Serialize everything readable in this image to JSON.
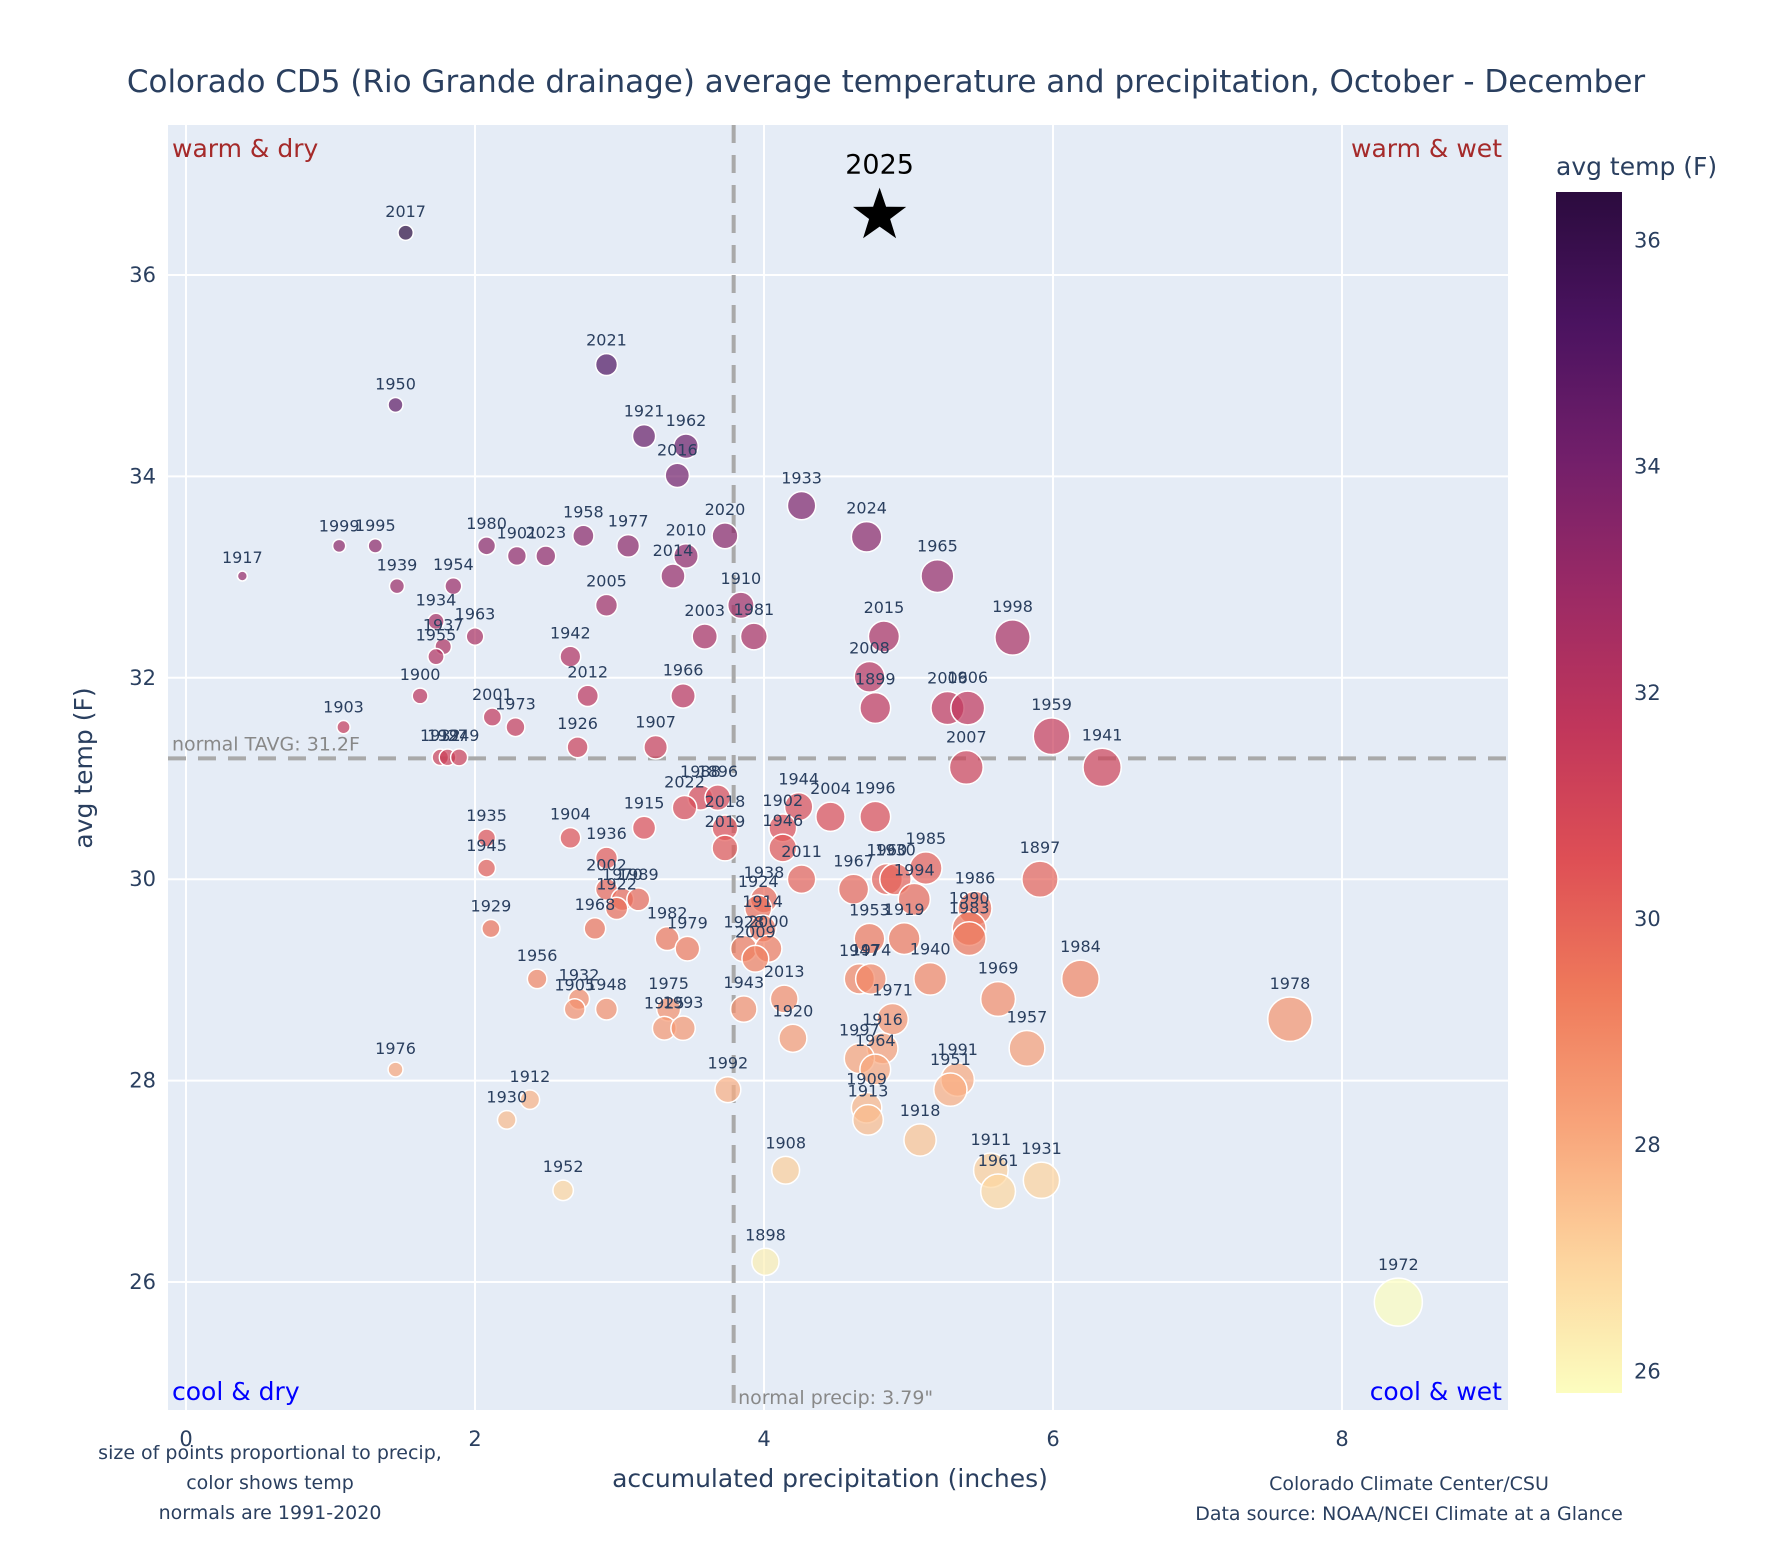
{
  "chart_data": {
    "type": "scatter",
    "title": "Colorado CD5 (Rio Grande drainage) average temperature and precipitation, October - December",
    "xlabel": "accumulated precipitation (inches)",
    "ylabel": "avg temp (F)",
    "xlim": [
      -0.1,
      9.2
    ],
    "ylim": [
      24.85,
      37.35
    ],
    "xticks": [
      0,
      2,
      4,
      6,
      8
    ],
    "yticks": [
      26,
      28,
      30,
      32,
      34,
      36
    ],
    "grid": true,
    "marker_size_encodes": "precip",
    "marker_color_encodes": "avg temp",
    "colorbar": {
      "title": "avg temp (F)",
      "range": [
        25.8,
        36.42
      ],
      "ticks": [
        26,
        28,
        30,
        32,
        34,
        36
      ],
      "colorscale": [
        "#fcfdbf",
        "#fdd49e",
        "#f8a47a",
        "#ef7a5b",
        "#de4f55",
        "#c0365b",
        "#9b2a65",
        "#721f6a",
        "#4b1360",
        "#2b0b3e"
      ]
    },
    "normals": {
      "precip": 3.79,
      "precip_label": "normal precip: 3.79\"",
      "tavg": 31.2,
      "tavg_label": "normal TAVG: 31.2F"
    },
    "quadrants": {
      "top_left": "warm & dry",
      "top_right": "warm & wet",
      "bottom_left": "cool & dry",
      "bottom_right": "cool & wet"
    },
    "highlight": {
      "label": "2025",
      "x": 4.8,
      "y": 36.63
    },
    "points": [
      {
        "year": "2017",
        "x": 1.52,
        "y": 36.42
      },
      {
        "year": "2021",
        "x": 2.91,
        "y": 35.11
      },
      {
        "year": "1950",
        "x": 1.45,
        "y": 34.71
      },
      {
        "year": "1921",
        "x": 3.17,
        "y": 34.4
      },
      {
        "year": "1962",
        "x": 3.46,
        "y": 34.3
      },
      {
        "year": "2016",
        "x": 3.4,
        "y": 34.01
      },
      {
        "year": "1933",
        "x": 4.26,
        "y": 33.71
      },
      {
        "year": "2024",
        "x": 4.71,
        "y": 33.4
      },
      {
        "year": "1965",
        "x": 5.2,
        "y": 33.01
      },
      {
        "year": "1998",
        "x": 5.72,
        "y": 32.4
      },
      {
        "year": "2020",
        "x": 3.73,
        "y": 33.41
      },
      {
        "year": "1999",
        "x": 1.06,
        "y": 33.31
      },
      {
        "year": "1995",
        "x": 1.31,
        "y": 33.31
      },
      {
        "year": "1980",
        "x": 2.08,
        "y": 33.31
      },
      {
        "year": "1901",
        "x": 2.29,
        "y": 33.21
      },
      {
        "year": "2023",
        "x": 2.49,
        "y": 33.21
      },
      {
        "year": "1958",
        "x": 2.75,
        "y": 33.41
      },
      {
        "year": "1977",
        "x": 3.06,
        "y": 33.31
      },
      {
        "year": "2010",
        "x": 3.46,
        "y": 33.21
      },
      {
        "year": "2014",
        "x": 3.37,
        "y": 33.01
      },
      {
        "year": "1910",
        "x": 3.84,
        "y": 32.72
      },
      {
        "year": "1981",
        "x": 3.93,
        "y": 32.41
      },
      {
        "year": "2003",
        "x": 3.59,
        "y": 32.41
      },
      {
        "year": "2005",
        "x": 2.91,
        "y": 32.72
      },
      {
        "year": "1917",
        "x": 0.39,
        "y": 33.01
      },
      {
        "year": "1939",
        "x": 1.46,
        "y": 32.91
      },
      {
        "year": "1954",
        "x": 1.85,
        "y": 32.91
      },
      {
        "year": "1934",
        "x": 1.73,
        "y": 32.56
      },
      {
        "year": "1937",
        "x": 1.78,
        "y": 32.31
      },
      {
        "year": "1955",
        "x": 1.73,
        "y": 32.21
      },
      {
        "year": "1963",
        "x": 2.0,
        "y": 32.41
      },
      {
        "year": "1942",
        "x": 2.66,
        "y": 32.21
      },
      {
        "year": "2012",
        "x": 2.78,
        "y": 31.82
      },
      {
        "year": "1966",
        "x": 3.44,
        "y": 31.82
      },
      {
        "year": "2015",
        "x": 4.83,
        "y": 32.41
      },
      {
        "year": "2008",
        "x": 4.73,
        "y": 32.01
      },
      {
        "year": "1899",
        "x": 4.77,
        "y": 31.7
      },
      {
        "year": "2006",
        "x": 5.27,
        "y": 31.7
      },
      {
        "year": "1906",
        "x": 5.41,
        "y": 31.7
      },
      {
        "year": "1959",
        "x": 5.99,
        "y": 31.42
      },
      {
        "year": "2007",
        "x": 5.4,
        "y": 31.11
      },
      {
        "year": "1941",
        "x": 6.34,
        "y": 31.11
      },
      {
        "year": "1900",
        "x": 1.62,
        "y": 31.82
      },
      {
        "year": "1903",
        "x": 1.09,
        "y": 31.51
      },
      {
        "year": "2001",
        "x": 2.12,
        "y": 31.61
      },
      {
        "year": "1973",
        "x": 2.28,
        "y": 31.51
      },
      {
        "year": "1926",
        "x": 2.71,
        "y": 31.31
      },
      {
        "year": "1907",
        "x": 3.25,
        "y": 31.31
      },
      {
        "year": "1932",
        "x": 1.76,
        "y": 31.21
      },
      {
        "year": "1927",
        "x": 1.81,
        "y": 31.21
      },
      {
        "year": "1949",
        "x": 1.89,
        "y": 31.21
      },
      {
        "year": "1988",
        "x": 3.56,
        "y": 30.81
      },
      {
        "year": "2022",
        "x": 3.45,
        "y": 30.71
      },
      {
        "year": "1896",
        "x": 3.68,
        "y": 30.81
      },
      {
        "year": "1915",
        "x": 3.17,
        "y": 30.51
      },
      {
        "year": "2018",
        "x": 3.73,
        "y": 30.51
      },
      {
        "year": "2019",
        "x": 3.73,
        "y": 30.31
      },
      {
        "year": "1904",
        "x": 2.66,
        "y": 30.41
      },
      {
        "year": "1935",
        "x": 2.08,
        "y": 30.41
      },
      {
        "year": "1945",
        "x": 2.08,
        "y": 30.11
      },
      {
        "year": "1936",
        "x": 2.91,
        "y": 30.21
      },
      {
        "year": "2002",
        "x": 2.91,
        "y": 29.9
      },
      {
        "year": "1970",
        "x": 3.02,
        "y": 29.8
      },
      {
        "year": "1922",
        "x": 2.98,
        "y": 29.71
      },
      {
        "year": "1944",
        "x": 4.24,
        "y": 30.72
      },
      {
        "year": "1902",
        "x": 4.13,
        "y": 30.51
      },
      {
        "year": "1946",
        "x": 4.13,
        "y": 30.31
      },
      {
        "year": "2004",
        "x": 4.46,
        "y": 30.62
      },
      {
        "year": "1996",
        "x": 4.77,
        "y": 30.62
      },
      {
        "year": "2011",
        "x": 4.26,
        "y": 30.0
      },
      {
        "year": "1967",
        "x": 4.62,
        "y": 29.9
      },
      {
        "year": "1960",
        "x": 4.85,
        "y": 30.0
      },
      {
        "year": "1930",
        "x": 4.91,
        "y": 30.0
      },
      {
        "year": "1985",
        "x": 5.12,
        "y": 30.11
      },
      {
        "year": "1994",
        "x": 5.04,
        "y": 29.8
      },
      {
        "year": "1897",
        "x": 5.91,
        "y": 30.0
      },
      {
        "year": "1986",
        "x": 5.46,
        "y": 29.71
      },
      {
        "year": "1990",
        "x": 5.42,
        "y": 29.51
      },
      {
        "year": "1983",
        "x": 5.42,
        "y": 29.41
      },
      {
        "year": "1969",
        "x": 5.62,
        "y": 28.81
      },
      {
        "year": "1984",
        "x": 6.19,
        "y": 29.01
      },
      {
        "year": "1978",
        "x": 7.64,
        "y": 28.61
      },
      {
        "year": "1957",
        "x": 5.82,
        "y": 28.32
      },
      {
        "year": "1938",
        "x": 4.0,
        "y": 29.8
      },
      {
        "year": "1924",
        "x": 3.96,
        "y": 29.71
      },
      {
        "year": "1914",
        "x": 3.99,
        "y": 29.51
      },
      {
        "year": "1928",
        "x": 3.86,
        "y": 29.31
      },
      {
        "year": "2000",
        "x": 4.03,
        "y": 29.31
      },
      {
        "year": "2009",
        "x": 3.94,
        "y": 29.21
      },
      {
        "year": "2013",
        "x": 4.14,
        "y": 28.81
      },
      {
        "year": "1943",
        "x": 3.86,
        "y": 28.71
      },
      {
        "year": "1920",
        "x": 4.2,
        "y": 28.42
      },
      {
        "year": "1953",
        "x": 4.73,
        "y": 29.41
      },
      {
        "year": "1919",
        "x": 4.97,
        "y": 29.41
      },
      {
        "year": "1947",
        "x": 4.66,
        "y": 29.01
      },
      {
        "year": "1974",
        "x": 4.74,
        "y": 29.01
      },
      {
        "year": "1940",
        "x": 5.15,
        "y": 29.01
      },
      {
        "year": "1971",
        "x": 4.89,
        "y": 28.61
      },
      {
        "year": "1916",
        "x": 4.82,
        "y": 28.32
      },
      {
        "year": "1997",
        "x": 4.66,
        "y": 28.22
      },
      {
        "year": "1964",
        "x": 4.77,
        "y": 28.11
      },
      {
        "year": "1991",
        "x": 5.34,
        "y": 28.01
      },
      {
        "year": "1951",
        "x": 5.29,
        "y": 27.91
      },
      {
        "year": "1909",
        "x": 4.71,
        "y": 27.73
      },
      {
        "year": "1913",
        "x": 4.72,
        "y": 27.61
      },
      {
        "year": "1918",
        "x": 5.08,
        "y": 27.41
      },
      {
        "year": "1911",
        "x": 5.57,
        "y": 27.11
      },
      {
        "year": "1961",
        "x": 5.62,
        "y": 26.9
      },
      {
        "year": "1931",
        "x": 5.92,
        "y": 27.01
      },
      {
        "year": "1908",
        "x": 4.15,
        "y": 27.11
      },
      {
        "year": "1898",
        "x": 4.01,
        "y": 26.2
      },
      {
        "year": "1992",
        "x": 3.75,
        "y": 27.91
      },
      {
        "year": "1972",
        "x": 8.39,
        "y": 25.8
      },
      {
        "year": "1982",
        "x": 3.33,
        "y": 29.41
      },
      {
        "year": "1979",
        "x": 3.47,
        "y": 29.31
      },
      {
        "year": "1968",
        "x": 2.83,
        "y": 29.51
      },
      {
        "year": "1989",
        "x": 3.13,
        "y": 29.8
      },
      {
        "year": "1929",
        "x": 2.11,
        "y": 29.51
      },
      {
        "year": "1956",
        "x": 2.43,
        "y": 29.01
      },
      {
        "year": "1932",
        "x": 2.72,
        "y": 28.81
      },
      {
        "year": "1905",
        "x": 2.69,
        "y": 28.71
      },
      {
        "year": "1948",
        "x": 2.91,
        "y": 28.71
      },
      {
        "year": "1975",
        "x": 3.34,
        "y": 28.71
      },
      {
        "year": "1925",
        "x": 3.31,
        "y": 28.52
      },
      {
        "year": "1993",
        "x": 3.44,
        "y": 28.52
      },
      {
        "year": "1976",
        "x": 1.45,
        "y": 28.11
      },
      {
        "year": "1912",
        "x": 2.38,
        "y": 27.81
      },
      {
        "year": "1930",
        "x": 2.22,
        "y": 27.61
      },
      {
        "year": "1952",
        "x": 2.61,
        "y": 26.91
      }
    ]
  },
  "annotations": {
    "notes_left": [
      "size of points proportional to precip,",
      "color shows temp",
      "normals are 1991-2020"
    ],
    "credits_right": [
      "Colorado Climate Center/CSU",
      "Data source: NOAA/NCEI Climate at a Glance"
    ]
  }
}
